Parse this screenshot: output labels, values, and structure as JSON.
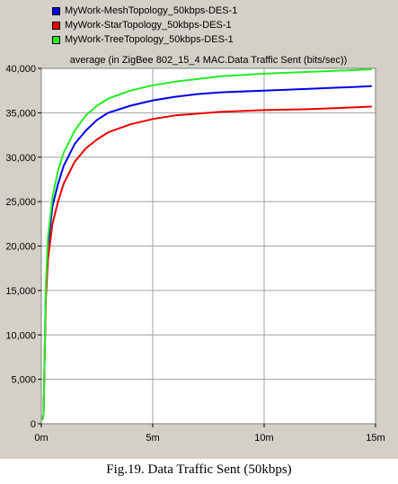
{
  "caption": "Fig.19. Data Traffic Sent (50kbps)",
  "chart_data": {
    "type": "line",
    "title": "average (in ZigBee 802_15_4 MAC.Data Traffic Sent (bits/sec))",
    "xlabel": "",
    "ylabel": "",
    "xlim": [
      0,
      15
    ],
    "ylim": [
      0,
      40000
    ],
    "x_ticks": [
      0,
      5,
      10,
      15
    ],
    "x_tick_labels": [
      "0m",
      "5m",
      "10m",
      "15m"
    ],
    "y_ticks": [
      0,
      5000,
      10000,
      15000,
      20000,
      25000,
      30000,
      35000,
      40000
    ],
    "y_tick_labels": [
      "0",
      "5,000",
      "10,000",
      "15,000",
      "20,000",
      "25,000",
      "30,000",
      "35,000",
      "40,000"
    ],
    "grid": true,
    "legend_position": "top-left",
    "series": [
      {
        "name": "MyWork-MeshTopology_50kbps-DES-1",
        "color": "#0000ee",
        "x": [
          0.05,
          0.1,
          0.2,
          0.3,
          0.5,
          0.75,
          1,
          1.5,
          2,
          2.5,
          3,
          4,
          5,
          6,
          7,
          8,
          10,
          12,
          14,
          14.8
        ],
        "y": [
          500,
          1000,
          15000,
          20000,
          24500,
          27000,
          29000,
          31500,
          33000,
          34200,
          35000,
          35800,
          36400,
          36800,
          37100,
          37300,
          37500,
          37700,
          37900,
          38000
        ]
      },
      {
        "name": "MyWork-StarTopology_50kbps-DES-1",
        "color": "#ee0000",
        "x": [
          0.05,
          0.1,
          0.2,
          0.3,
          0.5,
          0.75,
          1,
          1.5,
          2,
          2.5,
          3,
          4,
          5,
          6,
          7,
          8,
          10,
          12,
          14,
          14.8
        ],
        "y": [
          500,
          1000,
          14000,
          18500,
          22500,
          25000,
          27000,
          29500,
          31000,
          32000,
          32800,
          33700,
          34300,
          34700,
          34900,
          35100,
          35300,
          35400,
          35600,
          35700
        ]
      },
      {
        "name": "MyWork-TreeTopology_50kbps-DES-1",
        "color": "#22ee22",
        "x": [
          0.05,
          0.1,
          0.2,
          0.3,
          0.5,
          0.75,
          1,
          1.5,
          2,
          2.5,
          3,
          4,
          5,
          6,
          7,
          8,
          10,
          12,
          14,
          14.8
        ],
        "y": [
          500,
          1000,
          15500,
          21000,
          25500,
          28500,
          30500,
          33000,
          34700,
          35800,
          36600,
          37500,
          38100,
          38500,
          38800,
          39100,
          39400,
          39600,
          39800,
          39900
        ]
      }
    ]
  }
}
